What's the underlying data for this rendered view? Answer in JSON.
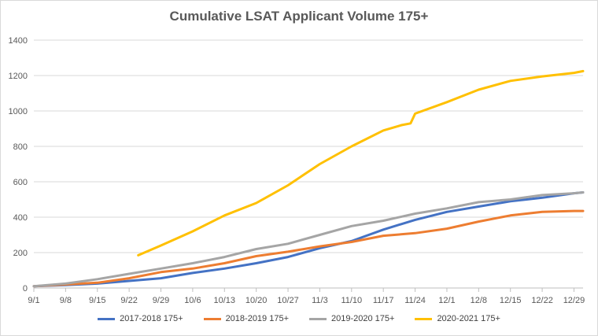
{
  "chart_data": {
    "type": "line",
    "title": "Cumulative LSAT Applicant Volume 175+",
    "xlabel": "",
    "ylabel": "",
    "ylim": [
      0,
      1400
    ],
    "yticks": [
      0,
      200,
      400,
      600,
      800,
      1000,
      1200,
      1400
    ],
    "xlim": [
      0,
      121
    ],
    "xticks": [
      {
        "day": 0,
        "label": "9/1"
      },
      {
        "day": 7,
        "label": "9/8"
      },
      {
        "day": 14,
        "label": "9/15"
      },
      {
        "day": 21,
        "label": "9/22"
      },
      {
        "day": 28,
        "label": "9/29"
      },
      {
        "day": 35,
        "label": "10/6"
      },
      {
        "day": 42,
        "label": "10/13"
      },
      {
        "day": 49,
        "label": "10/20"
      },
      {
        "day": 56,
        "label": "10/27"
      },
      {
        "day": 63,
        "label": "11/3"
      },
      {
        "day": 70,
        "label": "11/10"
      },
      {
        "day": 77,
        "label": "11/17"
      },
      {
        "day": 84,
        "label": "11/24"
      },
      {
        "day": 91,
        "label": "12/1"
      },
      {
        "day": 98,
        "label": "12/8"
      },
      {
        "day": 105,
        "label": "12/15"
      },
      {
        "day": 112,
        "label": "12/22"
      },
      {
        "day": 119,
        "label": "12/29"
      }
    ],
    "grid": "horizontal",
    "legend_position": "bottom",
    "series": [
      {
        "name": "2017-2018 175+",
        "color": "#4472C4",
        "x": [
          0,
          7,
          14,
          21,
          28,
          35,
          42,
          49,
          56,
          63,
          70,
          77,
          84,
          91,
          98,
          105,
          112,
          119,
          121
        ],
        "y": [
          10,
          17,
          25,
          40,
          55,
          85,
          110,
          140,
          175,
          225,
          265,
          330,
          385,
          430,
          460,
          490,
          510,
          535,
          540
        ]
      },
      {
        "name": "2018-2019 175+",
        "color": "#ED7D31",
        "x": [
          0,
          7,
          14,
          21,
          28,
          35,
          42,
          49,
          56,
          63,
          70,
          77,
          84,
          91,
          98,
          105,
          112,
          119,
          121
        ],
        "y": [
          10,
          20,
          30,
          55,
          90,
          110,
          140,
          180,
          205,
          235,
          260,
          295,
          310,
          335,
          375,
          410,
          430,
          435,
          435
        ]
      },
      {
        "name": "2019-2020 175+",
        "color": "#A5A5A5",
        "x": [
          0,
          7,
          14,
          21,
          28,
          35,
          42,
          49,
          56,
          63,
          70,
          77,
          84,
          91,
          98,
          105,
          112,
          119,
          121
        ],
        "y": [
          10,
          25,
          50,
          80,
          110,
          140,
          175,
          220,
          250,
          300,
          350,
          380,
          420,
          450,
          485,
          500,
          525,
          535,
          540
        ]
      },
      {
        "name": "2020-2021 175+",
        "color": "#FFC000",
        "x": [
          23,
          28,
          35,
          42,
          49,
          56,
          63,
          70,
          77,
          81,
          83,
          84,
          91,
          98,
          105,
          112,
          119,
          121
        ],
        "y": [
          185,
          240,
          320,
          410,
          480,
          580,
          700,
          800,
          890,
          920,
          930,
          985,
          1050,
          1120,
          1170,
          1195,
          1215,
          1225
        ]
      }
    ]
  }
}
